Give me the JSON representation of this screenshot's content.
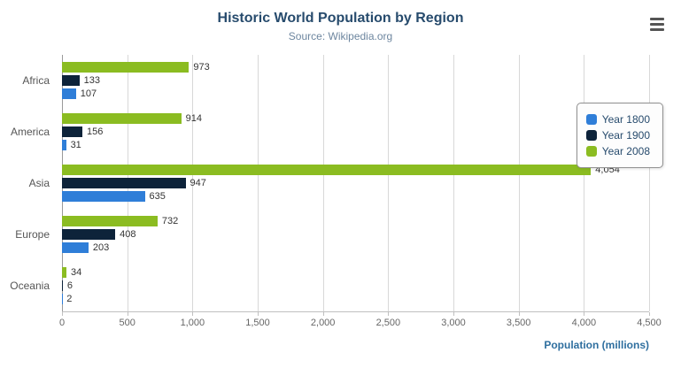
{
  "chart_data": {
    "type": "bar",
    "orientation": "horizontal",
    "title": "Historic World Population by Region",
    "subtitle": "Source: Wikipedia.org",
    "xlabel": "Population (millions)",
    "categories": [
      "Africa",
      "America",
      "Asia",
      "Europe",
      "Oceania"
    ],
    "series": [
      {
        "name": "Year 1800",
        "color": "#2f7ed8",
        "values": [
          107,
          31,
          635,
          203,
          2
        ]
      },
      {
        "name": "Year 1900",
        "color": "#0d233a",
        "values": [
          133,
          156,
          947,
          408,
          6
        ]
      },
      {
        "name": "Year 2008",
        "color": "#8bbc21",
        "values": [
          973,
          914,
          4054,
          732,
          34
        ]
      }
    ],
    "series_render_order_top_to_bottom": [
      "Year 2008",
      "Year 1900",
      "Year 1800"
    ],
    "xlim": [
      0,
      4500
    ],
    "xticks": [
      0,
      500,
      1000,
      1500,
      2000,
      2500,
      3000,
      3500,
      4000,
      4500
    ],
    "xtick_labels": [
      "0",
      "500",
      "1,000",
      "1,500",
      "2,000",
      "2,500",
      "3,000",
      "3,500",
      "4,000",
      "4,500"
    ],
    "grid": true,
    "legend_position": "right"
  }
}
